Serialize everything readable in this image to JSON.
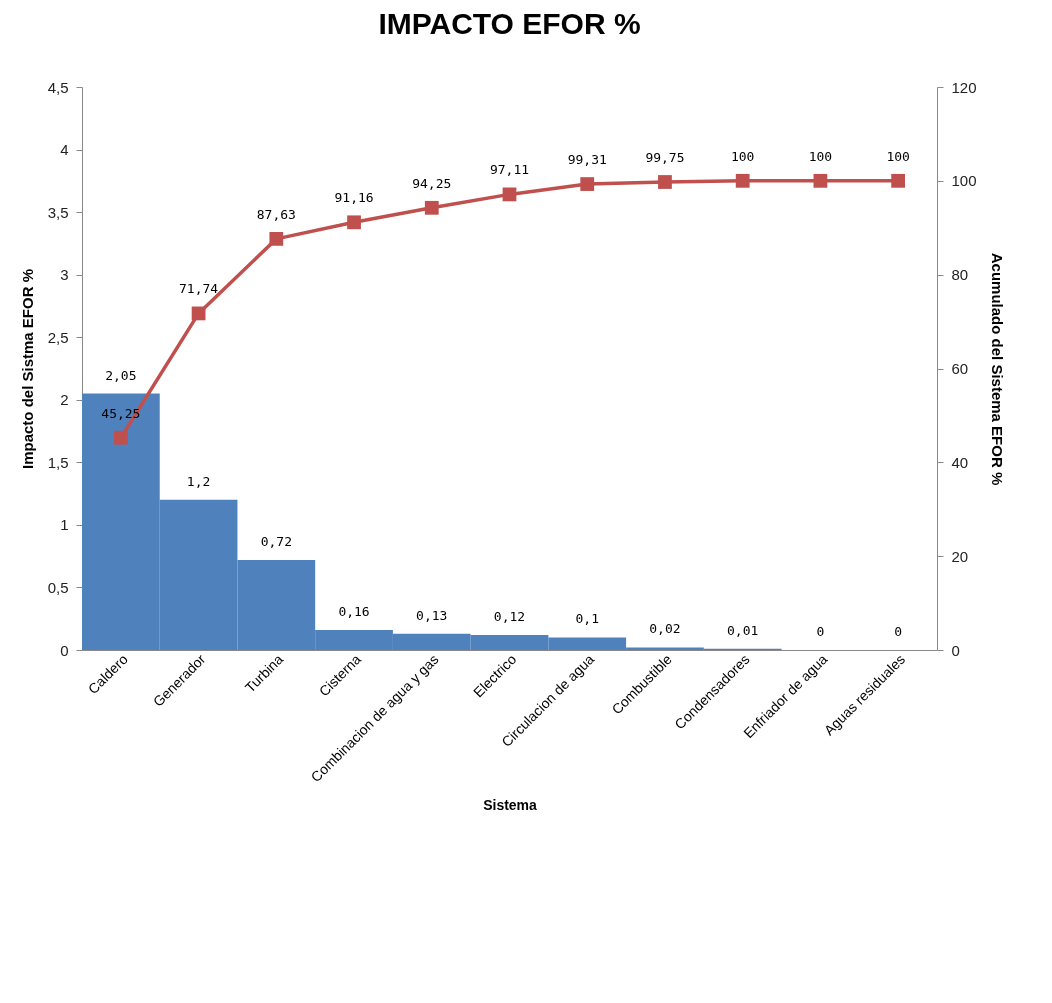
{
  "chart_data": {
    "type": "bar",
    "title": "IMPACTO EFOR %",
    "xlabel": "Sistema",
    "ylabel": "Impacto del Sistma EFOR %",
    "y2label": "Acumulado del Sistema EFOR %",
    "categories": [
      "Caldero",
      "Generador",
      "Turbina",
      "Cisterna",
      "Combinacion de agua y gas",
      "Electrico",
      "Circulacion de agua",
      "Combustible",
      "Condensadores",
      "Enfriador de agua",
      "Aguas residuales"
    ],
    "series": [
      {
        "color": "#4f81bd",
        "values": [
          2.05,
          1.2,
          0.72,
          0.16,
          0.13,
          0.12,
          0.1,
          0.02,
          0.01,
          0,
          0
        ],
        "value_labels": [
          "2,05",
          "1,2",
          "0,72",
          "0,16",
          "0,13",
          "0,12",
          "0,1",
          "0,02",
          "0,01",
          "0",
          "0"
        ]
      },
      {
        "type": "line",
        "axis": "y2",
        "color": "#c0504d",
        "values": [
          45.25,
          71.74,
          87.63,
          91.16,
          94.25,
          97.11,
          99.31,
          99.75,
          100,
          100,
          100
        ],
        "value_labels": [
          "45,25",
          "71,74",
          "87,63",
          "91,16",
          "94,25",
          "97,11",
          "99,31",
          "99,75",
          "100",
          "100",
          "100"
        ]
      }
    ],
    "ylim": [
      0,
      4.5
    ],
    "yticks": [
      0,
      {
        "value": 0.5,
        "label": "0,5"
      },
      1,
      {
        "value": 1.5,
        "label": "1,5"
      },
      2,
      {
        "value": 2.5,
        "label": "2,5"
      },
      3,
      {
        "value": 3.5,
        "label": "3,5"
      },
      4,
      {
        "value": 4.5,
        "label": "4,5"
      }
    ],
    "y2lim": [
      0,
      120
    ],
    "y2ticks": [
      0,
      20,
      40,
      60,
      80,
      100,
      120
    ],
    "grid": false,
    "marker": "square",
    "line_style": "solid"
  }
}
